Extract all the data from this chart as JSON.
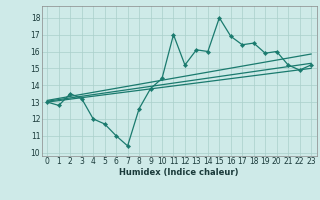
{
  "x": [
    0,
    1,
    2,
    3,
    4,
    5,
    6,
    7,
    8,
    9,
    10,
    11,
    12,
    13,
    14,
    15,
    16,
    17,
    18,
    19,
    20,
    21,
    22,
    23
  ],
  "y_main": [
    13.0,
    12.8,
    13.5,
    13.2,
    12.0,
    11.7,
    11.0,
    10.4,
    12.6,
    13.8,
    14.4,
    17.0,
    15.2,
    16.1,
    16.0,
    18.0,
    16.9,
    16.4,
    16.5,
    15.9,
    16.0,
    15.2,
    14.9,
    15.2
  ],
  "trend1_x": [
    0,
    23
  ],
  "trend1_y": [
    13.05,
    15.3
  ],
  "trend2_x": [
    0,
    23
  ],
  "trend2_y": [
    13.1,
    15.85
  ],
  "trend3_x": [
    0,
    23
  ],
  "trend3_y": [
    13.0,
    15.0
  ],
  "xlabel": "Humidex (Indice chaleur)",
  "ylim": [
    9.8,
    18.7
  ],
  "xlim": [
    -0.5,
    23.5
  ],
  "yticks": [
    10,
    11,
    12,
    13,
    14,
    15,
    16,
    17,
    18
  ],
  "xticks": [
    0,
    1,
    2,
    3,
    4,
    5,
    6,
    7,
    8,
    9,
    10,
    11,
    12,
    13,
    14,
    15,
    16,
    17,
    18,
    19,
    20,
    21,
    22,
    23
  ],
  "line_color": "#1a7a6e",
  "bg_color": "#ceeae8",
  "grid_color": "#aacfcb"
}
